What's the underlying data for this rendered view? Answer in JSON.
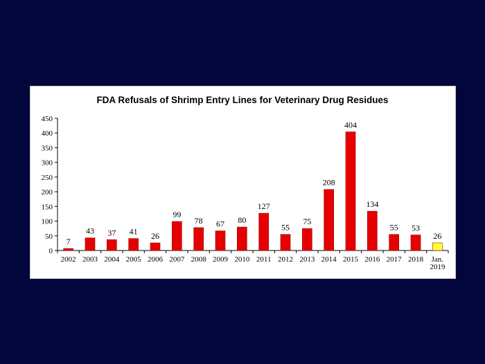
{
  "chart_data": {
    "type": "bar",
    "title": "FDA Refusals of Shrimp Entry Lines for Veterinary Drug Residues",
    "xlabel": "",
    "ylabel": "",
    "categories": [
      "2002",
      "2003",
      "2004",
      "2005",
      "2006",
      "2007",
      "2008",
      "2009",
      "2010",
      "2011",
      "2012",
      "2013",
      "2014",
      "2015",
      "2016",
      "2017",
      "2018",
      "Jan. 2019"
    ],
    "values": [
      7,
      43,
      37,
      41,
      26,
      99,
      78,
      67,
      80,
      127,
      55,
      75,
      208,
      404,
      134,
      55,
      53,
      26
    ],
    "ylim": [
      0,
      450
    ],
    "yticks": [
      0,
      50,
      100,
      150,
      200,
      250,
      300,
      350,
      400,
      450
    ],
    "grid": false,
    "legend": "none",
    "colors": {
      "bar": "#e60000",
      "highlight_bar": "#ffff33",
      "highlight_index": 17
    }
  }
}
